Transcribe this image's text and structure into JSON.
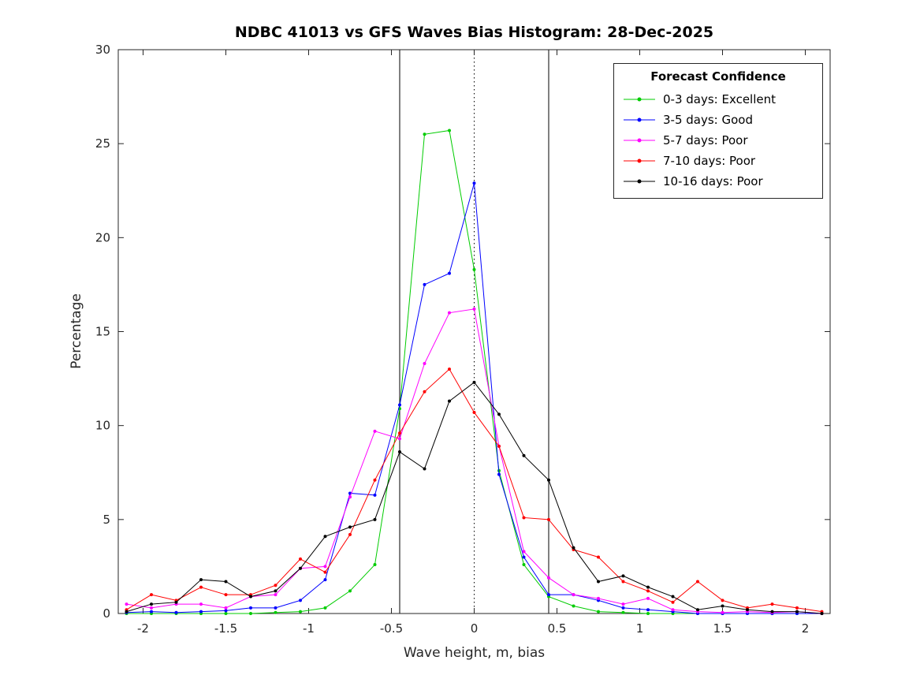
{
  "chart_data": {
    "type": "line",
    "title": "NDBC 41013 vs GFS Waves Bias Histogram: 28-Dec-2025",
    "xlabel": "Wave height, m, bias",
    "ylabel": "Percentage",
    "xlim": [
      -2.15,
      2.15
    ],
    "ylim": [
      0,
      30
    ],
    "grid": false,
    "xticks": [
      -2,
      -1.5,
      -1,
      -0.5,
      0,
      0.5,
      1,
      1.5,
      2
    ],
    "xtick_labels": [
      "-2",
      "-1.5",
      "-1",
      "-0.5",
      "0",
      "0.5",
      "1",
      "1.5",
      "2"
    ],
    "yticks": [
      0,
      5,
      10,
      15,
      20,
      25,
      30
    ],
    "x": [
      -2.1,
      -1.95,
      -1.8,
      -1.65,
      -1.5,
      -1.35,
      -1.2,
      -1.05,
      -0.9,
      -0.75,
      -0.6,
      -0.45,
      -0.3,
      -0.15,
      0,
      0.15,
      0.3,
      0.45,
      0.6,
      0.75,
      0.9,
      1.05,
      1.2,
      1.35,
      1.5,
      1.65,
      1.8,
      1.95,
      2.1
    ],
    "series": [
      {
        "label": "0-3 days: Excellent",
        "color": "#00cc00",
        "values": [
          0,
          0,
          0,
          0,
          0,
          0,
          0.05,
          0.1,
          0.3,
          1.2,
          2.6,
          10.9,
          25.5,
          25.7,
          18.3,
          7.6,
          2.6,
          0.9,
          0.4,
          0.1,
          0.05,
          0,
          0,
          0,
          0,
          0,
          0,
          0,
          0
        ]
      },
      {
        "label": "3-5 days: Good",
        "color": "#0000ff",
        "values": [
          0.05,
          0.1,
          0.05,
          0.1,
          0.15,
          0.3,
          0.3,
          0.7,
          1.8,
          6.4,
          6.3,
          11.1,
          17.5,
          18.1,
          22.9,
          7.4,
          3.0,
          1.0,
          1.0,
          0.7,
          0.3,
          0.2,
          0.1,
          0,
          0,
          0,
          0,
          0,
          0
        ]
      },
      {
        "label": "5-7 days: Poor",
        "color": "#ff00ff",
        "values": [
          0.5,
          0.3,
          0.5,
          0.5,
          0.3,
          0.9,
          1.0,
          2.4,
          2.5,
          6.2,
          9.7,
          9.3,
          13.3,
          16.0,
          16.2,
          8.9,
          3.3,
          1.9,
          1.0,
          0.8,
          0.5,
          0.8,
          0.2,
          0.1,
          0.05,
          0.1,
          0.05,
          0.1,
          0
        ]
      },
      {
        "label": "7-10 days: Poor",
        "color": "#ff0000",
        "values": [
          0.2,
          1.0,
          0.7,
          1.4,
          1.0,
          1.0,
          1.5,
          2.9,
          2.2,
          4.2,
          7.1,
          9.6,
          11.8,
          13.0,
          10.7,
          8.9,
          5.1,
          5.0,
          3.4,
          3.0,
          1.7,
          1.2,
          0.6,
          1.7,
          0.7,
          0.3,
          0.5,
          0.3,
          0.1
        ]
      },
      {
        "label": "10-16 days: Poor",
        "color": "#000000",
        "values": [
          0.1,
          0.5,
          0.6,
          1.8,
          1.7,
          0.9,
          1.2,
          2.4,
          4.1,
          4.6,
          5.0,
          8.6,
          7.7,
          11.3,
          12.3,
          10.6,
          8.4,
          7.1,
          3.5,
          1.7,
          2.0,
          1.4,
          0.9,
          0.2,
          0.4,
          0.2,
          0.1,
          0.1,
          0
        ]
      }
    ],
    "reference_lines": [
      {
        "x": -0.45,
        "style": "solid",
        "color": "#000000"
      },
      {
        "x": 0,
        "style": "dotted",
        "color": "#000000"
      },
      {
        "x": 0.45,
        "style": "solid",
        "color": "#000000"
      }
    ],
    "legend": {
      "title": "Forecast Confidence",
      "position": "top-right"
    }
  }
}
